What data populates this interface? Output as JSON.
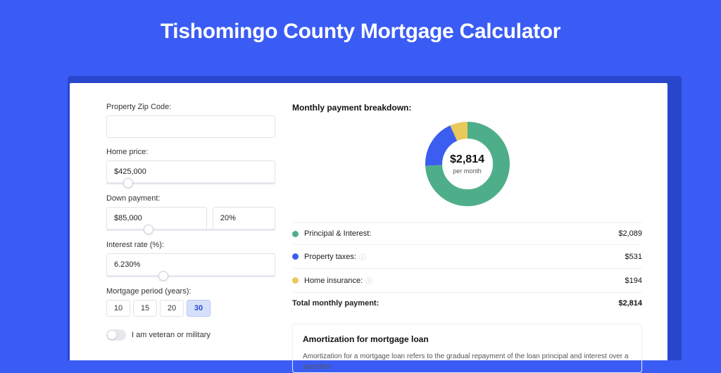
{
  "title": "Tishomingo County Mortgage Calculator",
  "colors": {
    "page_bg": "#3a5cf5",
    "card_shadow": "#2746cc",
    "principal": "#4fae8a",
    "taxes": "#3b5ef0",
    "insurance": "#e8c95a"
  },
  "inputs": {
    "zip": {
      "label": "Property Zip Code:",
      "value": ""
    },
    "home_price": {
      "label": "Home price:",
      "value": "$425,000",
      "slider_pct": 10
    },
    "down_payment": {
      "label": "Down payment:",
      "value": "$85,000",
      "pct": "20%",
      "slider_pct": 22
    },
    "interest": {
      "label": "Interest rate (%):",
      "value": "6.230%",
      "slider_pct": 31
    },
    "period": {
      "label": "Mortgage period (years):",
      "options": [
        "10",
        "15",
        "20",
        "30"
      ],
      "selected": "30"
    },
    "veteran": {
      "label": "I am veteran or military",
      "on": false
    }
  },
  "breakdown": {
    "title": "Monthly payment breakdown:",
    "center_amount": "$2,814",
    "center_sub": "per month",
    "items": [
      {
        "label": "Principal & Interest:",
        "value": "$2,089",
        "color": "#4fae8a",
        "info": false,
        "pct": 74.2
      },
      {
        "label": "Property taxes:",
        "value": "$531",
        "color": "#3b5ef0",
        "info": true,
        "pct": 18.9
      },
      {
        "label": "Home insurance:",
        "value": "$194",
        "color": "#e8c95a",
        "info": true,
        "pct": 6.9
      }
    ],
    "total_label": "Total monthly payment:",
    "total_value": "$2,814"
  },
  "amortization": {
    "title": "Amortization for mortgage loan",
    "text": "Amortization for a mortgage loan refers to the gradual repayment of the loan principal and interest over a specified"
  }
}
